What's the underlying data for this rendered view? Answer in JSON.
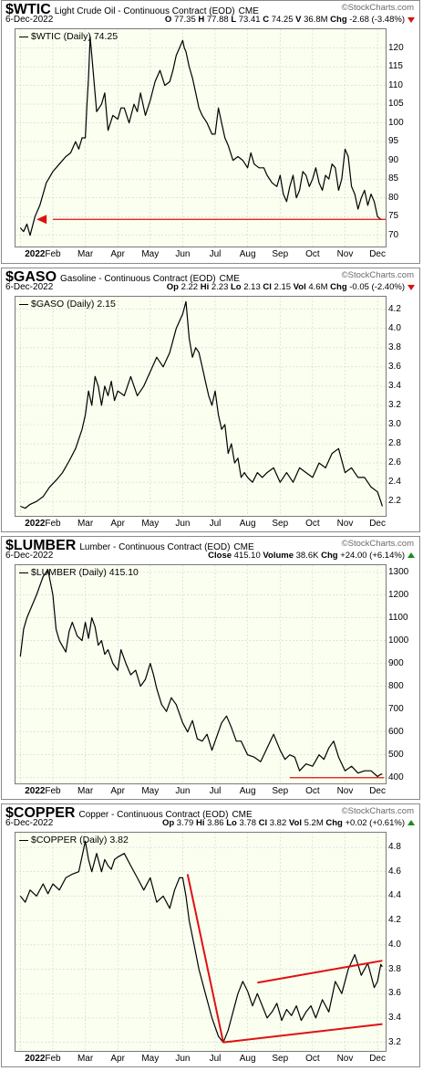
{
  "brand": "StockCharts.com",
  "x_months": [
    "2022",
    "Feb",
    "Mar",
    "Apr",
    "May",
    "Jun",
    "Jul",
    "Aug",
    "Sep",
    "Oct",
    "Nov",
    "Dec"
  ],
  "panels": [
    {
      "symbol": "$WTIC",
      "description": "Light Crude Oil - Continuous Contract (EOD)",
      "exchange": "CME",
      "date": "6-Dec-2022",
      "quote": [
        {
          "label": "O",
          "value": "77.35"
        },
        {
          "label": "H",
          "value": "77.88"
        },
        {
          "label": "L",
          "value": "73.41"
        },
        {
          "label": "C",
          "value": "74.25"
        },
        {
          "label": "V",
          "value": "36.8M"
        },
        {
          "label": "Chg",
          "value": "-2.68 (-3.48%)"
        }
      ],
      "direction": "down",
      "legend": "$WTIC (Daily) 74.25"
    },
    {
      "symbol": "$GASO",
      "description": "Gasoline - Continuous Contract (EOD)",
      "exchange": "CME",
      "date": "6-Dec-2022",
      "quote": [
        {
          "label": "Op",
          "value": "2.22"
        },
        {
          "label": "Hi",
          "value": "2.23"
        },
        {
          "label": "Lo",
          "value": "2.13"
        },
        {
          "label": "Cl",
          "value": "2.15"
        },
        {
          "label": "Vol",
          "value": "4.6M"
        },
        {
          "label": "Chg",
          "value": "-0.05 (-2.40%)"
        }
      ],
      "direction": "down",
      "legend": "$GASO (Daily) 2.15"
    },
    {
      "symbol": "$LUMBER",
      "description": "Lumber - Continuous Contract (EOD)",
      "exchange": "CME",
      "date": "6-Dec-2022",
      "quote": [
        {
          "label": "Close",
          "value": "415.10"
        },
        {
          "label": "Volume",
          "value": "38.6K"
        },
        {
          "label": "Chg",
          "value": "+24.00 (+6.14%)"
        }
      ],
      "direction": "up",
      "legend": "$LUMBER (Daily) 415.10"
    },
    {
      "symbol": "$COPPER",
      "description": "Copper - Continuous Contract (EOD)",
      "exchange": "CME",
      "date": "6-Dec-2022",
      "quote": [
        {
          "label": "Op",
          "value": "3.79"
        },
        {
          "label": "Hi",
          "value": "3.86"
        },
        {
          "label": "Lo",
          "value": "3.78"
        },
        {
          "label": "Cl",
          "value": "3.82"
        },
        {
          "label": "Vol",
          "value": "5.2M"
        },
        {
          "label": "Chg",
          "value": "+0.02 (+0.61%)"
        }
      ],
      "direction": "up",
      "legend": "$COPPER (Daily) 3.82"
    }
  ],
  "colors": {
    "line": "#000000",
    "annotation": "#e01010",
    "plot_bg": "#fafff0",
    "grid": "#d2d2d2"
  },
  "chart_data": [
    {
      "type": "line",
      "title": "$WTIC",
      "series": [
        {
          "name": "$WTIC (Daily)",
          "x": [
            0.0,
            0.1,
            0.2,
            0.3,
            0.45,
            0.6,
            0.8,
            1.0,
            1.2,
            1.4,
            1.55,
            1.7,
            1.8,
            1.9,
            2.0,
            2.05,
            2.1,
            2.15,
            2.2,
            2.35,
            2.5,
            2.6,
            2.7,
            2.85,
            3.0,
            3.1,
            3.2,
            3.35,
            3.5,
            3.6,
            3.7,
            3.85,
            4.0,
            4.15,
            4.3,
            4.45,
            4.6,
            4.7,
            4.8,
            4.9,
            5.0,
            5.05,
            5.1,
            5.2,
            5.3,
            5.4,
            5.5,
            5.6,
            5.75,
            5.9,
            6.0,
            6.1,
            6.2,
            6.3,
            6.4,
            6.55,
            6.7,
            6.85,
            7.0,
            7.1,
            7.2,
            7.35,
            7.5,
            7.6,
            7.75,
            7.9,
            8.0,
            8.1,
            8.2,
            8.3,
            8.4,
            8.5,
            8.6,
            8.7,
            8.8,
            8.9,
            9.0,
            9.1,
            9.2,
            9.3,
            9.4,
            9.5,
            9.6,
            9.7,
            9.8,
            9.9,
            10.0,
            10.1,
            10.2,
            10.3,
            10.4,
            10.5,
            10.6,
            10.7,
            10.8,
            10.9,
            11.0,
            11.1,
            11.15
          ],
          "values": [
            72,
            71,
            73,
            70,
            75,
            78,
            84,
            87,
            89,
            91,
            92,
            95,
            93,
            96,
            96,
            105,
            112,
            123,
            118,
            103,
            105,
            108,
            98,
            102,
            101,
            104,
            104,
            100,
            105,
            103,
            108,
            102,
            106,
            111,
            114,
            110,
            111,
            114,
            118,
            120,
            122,
            120,
            119,
            115,
            112,
            108,
            104,
            102,
            100,
            97,
            97,
            104,
            100,
            96,
            94,
            90,
            91,
            90,
            88,
            92,
            89,
            88,
            88,
            86,
            84,
            83,
            86,
            81,
            79,
            83,
            86,
            80,
            82,
            87,
            86,
            83,
            85,
            88,
            84,
            82,
            86,
            85,
            89,
            88,
            82,
            85,
            93,
            91,
            83,
            81,
            77,
            80,
            82,
            78,
            81,
            79,
            75,
            74.25,
            74.25
          ]
        }
      ],
      "x_axis_labels": [
        "2022",
        "Feb",
        "Mar",
        "Apr",
        "May",
        "Jun",
        "Jul",
        "Aug",
        "Sep",
        "Oct",
        "Nov",
        "Dec"
      ],
      "ylim": [
        67,
        125
      ],
      "yticks": [
        70,
        75,
        80,
        85,
        90,
        95,
        100,
        105,
        110,
        115,
        120
      ],
      "annotation": {
        "type": "horizontal-arrow",
        "y": 74.25,
        "color": "#e01010"
      }
    },
    {
      "type": "line",
      "title": "$GASO",
      "series": [
        {
          "name": "$GASO (Daily)",
          "x": [
            0.0,
            0.15,
            0.3,
            0.5,
            0.7,
            0.9,
            1.1,
            1.3,
            1.5,
            1.7,
            1.9,
            2.0,
            2.1,
            2.2,
            2.3,
            2.4,
            2.5,
            2.6,
            2.7,
            2.8,
            2.9,
            3.0,
            3.2,
            3.4,
            3.6,
            3.8,
            4.0,
            4.2,
            4.4,
            4.6,
            4.8,
            5.0,
            5.1,
            5.2,
            5.3,
            5.4,
            5.5,
            5.6,
            5.7,
            5.8,
            5.9,
            6.0,
            6.1,
            6.2,
            6.3,
            6.4,
            6.5,
            6.6,
            6.7,
            6.8,
            6.9,
            7.0,
            7.15,
            7.3,
            7.45,
            7.6,
            7.8,
            8.0,
            8.2,
            8.4,
            8.6,
            8.8,
            9.0,
            9.2,
            9.4,
            9.6,
            9.8,
            10.0,
            10.2,
            10.4,
            10.6,
            10.8,
            11.0,
            11.1,
            11.15
          ],
          "values": [
            2.15,
            2.13,
            2.17,
            2.2,
            2.25,
            2.35,
            2.42,
            2.5,
            2.62,
            2.75,
            2.95,
            3.1,
            3.35,
            3.2,
            3.5,
            3.4,
            3.2,
            3.4,
            3.3,
            3.45,
            3.25,
            3.35,
            3.3,
            3.5,
            3.3,
            3.4,
            3.55,
            3.7,
            3.6,
            3.75,
            4.0,
            4.15,
            4.28,
            3.9,
            3.7,
            3.8,
            3.75,
            3.6,
            3.45,
            3.3,
            3.2,
            3.35,
            3.1,
            2.95,
            3.0,
            2.7,
            2.8,
            2.6,
            2.65,
            2.45,
            2.5,
            2.45,
            2.4,
            2.5,
            2.45,
            2.5,
            2.55,
            2.4,
            2.5,
            2.4,
            2.55,
            2.5,
            2.45,
            2.6,
            2.55,
            2.7,
            2.75,
            2.5,
            2.55,
            2.45,
            2.45,
            2.35,
            2.3,
            2.2,
            2.15
          ]
        }
      ],
      "x_axis_labels": [
        "2022",
        "Feb",
        "Mar",
        "Apr",
        "May",
        "Jun",
        "Jul",
        "Aug",
        "Sep",
        "Oct",
        "Nov",
        "Dec"
      ],
      "ylim": [
        2.05,
        4.33
      ],
      "yticks": [
        2.2,
        2.4,
        2.6,
        2.8,
        3.0,
        3.2,
        3.4,
        3.6,
        3.8,
        4.0,
        4.2
      ]
    },
    {
      "type": "line",
      "title": "$LUMBER",
      "series": [
        {
          "name": "$LUMBER (Daily)",
          "x": [
            0.0,
            0.1,
            0.2,
            0.35,
            0.5,
            0.7,
            0.85,
            1.0,
            1.1,
            1.2,
            1.4,
            1.5,
            1.6,
            1.75,
            1.9,
            2.0,
            2.1,
            2.2,
            2.3,
            2.4,
            2.5,
            2.6,
            2.7,
            2.85,
            3.0,
            3.1,
            3.25,
            3.4,
            3.55,
            3.7,
            3.85,
            4.0,
            4.1,
            4.2,
            4.35,
            4.5,
            4.65,
            4.8,
            5.0,
            5.15,
            5.3,
            5.45,
            5.6,
            5.75,
            5.9,
            6.05,
            6.2,
            6.35,
            6.5,
            6.65,
            6.8,
            7.0,
            7.2,
            7.4,
            7.6,
            7.8,
            8.0,
            8.15,
            8.3,
            8.45,
            8.6,
            8.8,
            9.0,
            9.2,
            9.35,
            9.5,
            9.65,
            9.8,
            10.0,
            10.2,
            10.4,
            10.6,
            10.8,
            11.0,
            11.1,
            11.15
          ],
          "values": [
            930,
            1050,
            1100,
            1150,
            1200,
            1280,
            1310,
            1200,
            1050,
            1000,
            950,
            1040,
            1080,
            1020,
            1000,
            1080,
            1010,
            1100,
            1060,
            980,
            1000,
            940,
            960,
            900,
            870,
            960,
            900,
            850,
            870,
            800,
            830,
            900,
            850,
            790,
            720,
            690,
            750,
            720,
            640,
            600,
            650,
            570,
            560,
            590,
            520,
            580,
            640,
            670,
            620,
            560,
            560,
            500,
            490,
            470,
            530,
            590,
            520,
            480,
            500,
            490,
            430,
            460,
            450,
            500,
            480,
            530,
            560,
            490,
            430,
            450,
            420,
            430,
            430,
            405,
            415,
            415
          ]
        }
      ],
      "x_axis_labels": [
        "2022",
        "Feb",
        "Mar",
        "Apr",
        "May",
        "Jun",
        "Jul",
        "Aug",
        "Sep",
        "Oct",
        "Nov",
        "Dec"
      ],
      "ylim": [
        375,
        1330
      ],
      "yticks": [
        400,
        500,
        600,
        700,
        800,
        900,
        1000,
        1100,
        1200,
        1300
      ],
      "annotation": {
        "type": "horizontal-line",
        "y": 400,
        "color": "#e01010"
      }
    },
    {
      "type": "line",
      "title": "$COPPER",
      "series": [
        {
          "name": "$COPPER (Daily)",
          "x": [
            0.0,
            0.15,
            0.3,
            0.5,
            0.7,
            0.85,
            1.0,
            1.2,
            1.4,
            1.6,
            1.8,
            2.0,
            2.1,
            2.2,
            2.35,
            2.5,
            2.6,
            2.7,
            2.8,
            2.9,
            3.0,
            3.2,
            3.4,
            3.6,
            3.8,
            4.0,
            4.2,
            4.4,
            4.6,
            4.75,
            4.9,
            5.0,
            5.1,
            5.2,
            5.35,
            5.5,
            5.7,
            5.9,
            6.1,
            6.25,
            6.4,
            6.55,
            6.7,
            6.85,
            7.0,
            7.15,
            7.3,
            7.45,
            7.6,
            7.75,
            7.9,
            8.05,
            8.2,
            8.35,
            8.5,
            8.65,
            8.8,
            8.95,
            9.1,
            9.3,
            9.5,
            9.7,
            9.9,
            10.1,
            10.3,
            10.5,
            10.7,
            10.9,
            11.0,
            11.1,
            11.15
          ],
          "values": [
            4.4,
            4.35,
            4.45,
            4.4,
            4.5,
            4.42,
            4.5,
            4.45,
            4.55,
            4.58,
            4.6,
            4.85,
            4.7,
            4.6,
            4.75,
            4.6,
            4.7,
            4.65,
            4.62,
            4.7,
            4.72,
            4.75,
            4.65,
            4.55,
            4.45,
            4.55,
            4.35,
            4.4,
            4.3,
            4.45,
            4.55,
            4.55,
            4.4,
            4.2,
            4.0,
            3.8,
            3.6,
            3.4,
            3.25,
            3.2,
            3.3,
            3.45,
            3.6,
            3.7,
            3.62,
            3.5,
            3.6,
            3.5,
            3.4,
            3.45,
            3.52,
            3.38,
            3.47,
            3.42,
            3.5,
            3.38,
            3.45,
            3.5,
            3.4,
            3.55,
            3.45,
            3.7,
            3.6,
            3.8,
            3.92,
            3.75,
            3.85,
            3.65,
            3.7,
            3.84,
            3.82
          ]
        }
      ],
      "x_axis_labels": [
        "2022",
        "Feb",
        "Mar",
        "Apr",
        "May",
        "Jun",
        "Jul",
        "Aug",
        "Sep",
        "Oct",
        "Nov",
        "Dec"
      ],
      "ylim": [
        3.13,
        4.92
      ],
      "yticks": [
        3.2,
        3.4,
        3.6,
        3.8,
        4.0,
        4.2,
        4.4,
        4.6,
        4.8
      ],
      "annotation": {
        "type": "trendlines",
        "color": "#e01010",
        "lines": [
          {
            "x": [
              5.15,
              6.25
            ],
            "y": [
              4.58,
              3.2
            ]
          },
          {
            "x": [
              6.25,
              11.15
            ],
            "y": [
              3.2,
              3.35
            ]
          },
          {
            "x": [
              7.3,
              11.15
            ],
            "y": [
              3.69,
              3.87
            ]
          }
        ]
      }
    }
  ]
}
